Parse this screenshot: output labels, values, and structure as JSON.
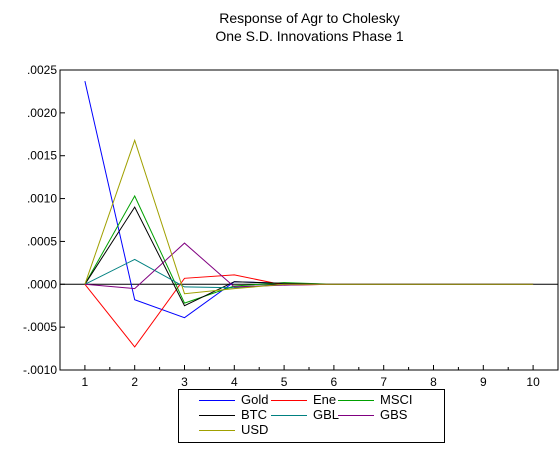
{
  "chart_data": {
    "type": "line",
    "title": "Response of Agr to Cholesky",
    "subtitle": "One S.D. Innovations Phase 1",
    "x": [
      1,
      2,
      3,
      4,
      5,
      6,
      7,
      8,
      9,
      10
    ],
    "xlim": [
      0.5,
      10.5
    ],
    "ylim": [
      -0.001,
      0.0025
    ],
    "yticks": [
      ".0025",
      ".0020",
      ".0015",
      ".0010",
      ".0005",
      ".0000",
      "-.0005",
      "-.0010"
    ],
    "xticks": [
      "1",
      "2",
      "3",
      "4",
      "5",
      "6",
      "7",
      "8",
      "9",
      "10"
    ],
    "zero_line": true,
    "grid": false,
    "legend_position": "bottom",
    "series": [
      {
        "name": "Gold",
        "color": "#0000ff",
        "values": [
          0.00237,
          -0.00018,
          -0.00039,
          3e-05,
          1e-05,
          0.0,
          0.0,
          0.0,
          0.0,
          0.0
        ]
      },
      {
        "name": "Ene",
        "color": "#ff0000",
        "values": [
          0.0,
          -0.00073,
          7e-05,
          0.00011,
          -1e-05,
          0.0,
          0.0,
          0.0,
          0.0,
          0.0
        ]
      },
      {
        "name": "MSCI",
        "color": "#00a000",
        "values": [
          0.0,
          0.00103,
          -0.00022,
          -2e-05,
          2e-05,
          0.0,
          0.0,
          0.0,
          0.0,
          0.0
        ]
      },
      {
        "name": "BTC",
        "color": "#000000",
        "values": [
          0.0,
          0.0009,
          -0.00025,
          3e-05,
          1e-05,
          0.0,
          0.0,
          0.0,
          0.0,
          0.0
        ]
      },
      {
        "name": "GBL",
        "color": "#008080",
        "values": [
          0.0,
          0.00029,
          -3e-05,
          -4e-05,
          0.0,
          0.0,
          0.0,
          0.0,
          0.0,
          0.0
        ]
      },
      {
        "name": "GBS",
        "color": "#800080",
        "values": [
          0.0,
          -5e-05,
          0.00048,
          -3e-05,
          -1e-05,
          0.0,
          0.0,
          0.0,
          0.0,
          0.0
        ]
      },
      {
        "name": "USD",
        "color": "#a0a000",
        "values": [
          0.0,
          0.00168,
          -0.00011,
          -5e-05,
          0.0,
          0.0,
          0.0,
          0.0,
          0.0,
          0.0
        ]
      }
    ]
  }
}
